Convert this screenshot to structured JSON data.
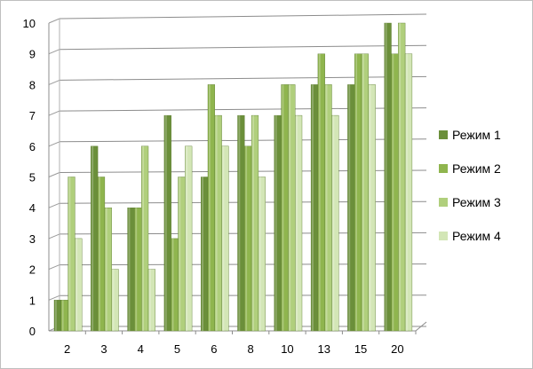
{
  "chart_data": {
    "type": "bar",
    "title": "",
    "xlabel": "",
    "ylabel": "",
    "categories": [
      "2",
      "3",
      "4",
      "5",
      "6",
      "8",
      "10",
      "13",
      "15",
      "20"
    ],
    "series": [
      {
        "name": "Режим 1",
        "color": "#6b8f3a",
        "values": [
          1,
          6,
          4,
          7,
          5,
          7,
          7,
          8,
          8,
          10
        ]
      },
      {
        "name": "Режим 2",
        "color": "#8fb54e",
        "values": [
          1,
          5,
          4,
          3,
          8,
          6,
          8,
          9,
          9,
          9
        ]
      },
      {
        "name": "Режим 3",
        "color": "#b0cf7c",
        "values": [
          5,
          4,
          6,
          5,
          7,
          7,
          8,
          8,
          9,
          10
        ]
      },
      {
        "name": "Режим 4",
        "color": "#d3e6b6",
        "values": [
          3,
          2,
          2,
          6,
          6,
          5,
          7,
          7,
          8,
          9
        ]
      }
    ],
    "ylim": [
      0,
      10
    ],
    "yticks": [
      "0",
      "1",
      "2",
      "3",
      "4",
      "5",
      "6",
      "7",
      "8",
      "9",
      "10"
    ],
    "grid": true,
    "legend_position": "right"
  }
}
